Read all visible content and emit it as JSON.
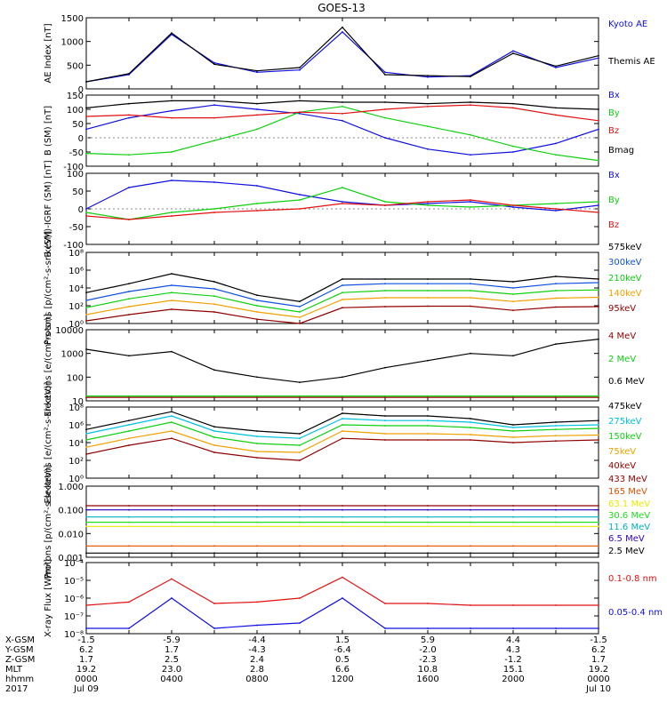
{
  "title": "GOES-13",
  "colors": {
    "black": "#000000",
    "blue": "#1010e0",
    "green": "#10d010",
    "red": "#e01010",
    "orange": "#f0a000",
    "cyan": "#00c0e0",
    "darkred": "#900000",
    "midblue": "#1050e0",
    "yellow": "#e8e800",
    "lime": "#20e020",
    "teal": "#00b0c0",
    "darkorange": "#e05000",
    "purple": "#3000c0"
  },
  "footer": {
    "row_labels": [
      "X-GSM",
      "Y-GSM",
      "Z-GSM",
      "MLT",
      "hhmm",
      "2017"
    ],
    "columns": [
      [
        "-1.5",
        "6.2",
        "1.7",
        "19.2",
        "0000",
        "Jul 09"
      ],
      [
        "-5.9",
        "1.7",
        "2.5",
        "23.0",
        "0400",
        ""
      ],
      [
        "-4.4",
        "-4.3",
        "2.4",
        "2.8",
        "0800",
        ""
      ],
      [
        "1.5",
        "-6.4",
        "0.5",
        "6.6",
        "1200",
        ""
      ],
      [
        "5.9",
        "-2.0",
        "-2.3",
        "10.8",
        "1600",
        ""
      ],
      [
        "4.4",
        "4.3",
        "-1.2",
        "15.1",
        "2000",
        ""
      ],
      [
        "-1.5",
        "6.2",
        "1.7",
        "19.2",
        "0000",
        "Jul 10"
      ]
    ]
  },
  "chart_data": [
    {
      "type": "line",
      "title": "GOES-13",
      "ylabel": "AE Index [nT]",
      "ylim": [
        0,
        1500
      ],
      "yticks": [
        "0",
        "500",
        "1000",
        "1500"
      ],
      "x": [
        "0000",
        "0200",
        "0400",
        "0600",
        "0800",
        "1000",
        "1200",
        "1400",
        "1600",
        "1800",
        "2000",
        "2200",
        "0000"
      ],
      "series": [
        {
          "name": "Kyoto AE",
          "color": "blue",
          "values": [
            150,
            300,
            1150,
            550,
            350,
            400,
            1200,
            350,
            250,
            280,
            800,
            450,
            650
          ]
        },
        {
          "name": "Themis AE",
          "color": "black",
          "values": [
            150,
            320,
            1180,
            520,
            380,
            450,
            1300,
            300,
            280,
            260,
            750,
            480,
            700
          ]
        }
      ]
    },
    {
      "type": "line",
      "ylabel": "B (SM) [nT]",
      "ylim": [
        -100,
        150
      ],
      "yticks": [
        "-100",
        "-50",
        "0",
        "50",
        "100",
        "150"
      ],
      "x": [
        "0000",
        "0200",
        "0400",
        "0600",
        "0800",
        "1000",
        "1200",
        "1400",
        "1600",
        "1800",
        "2000",
        "2200",
        "0000"
      ],
      "series": [
        {
          "name": "Bx",
          "color": "blue",
          "values": [
            30,
            70,
            95,
            115,
            100,
            85,
            60,
            0,
            -40,
            -60,
            -50,
            -20,
            30
          ]
        },
        {
          "name": "By",
          "color": "green",
          "values": [
            -55,
            -60,
            -50,
            -10,
            30,
            90,
            110,
            70,
            40,
            10,
            -30,
            -60,
            -80
          ]
        },
        {
          "name": "Bz",
          "color": "red",
          "values": [
            75,
            80,
            70,
            70,
            80,
            90,
            85,
            100,
            110,
            115,
            105,
            80,
            60
          ]
        },
        {
          "name": "Bmag",
          "color": "black",
          "values": [
            105,
            120,
            130,
            130,
            120,
            130,
            125,
            125,
            120,
            125,
            120,
            105,
            100
          ]
        }
      ]
    },
    {
      "type": "line",
      "ylabel": "B (SM)-IGRF (SM) [nT]",
      "ylim": [
        -100,
        100
      ],
      "yticks": [
        "-100",
        "-50",
        "0",
        "50",
        "100"
      ],
      "x": [
        "0000",
        "0200",
        "0400",
        "0600",
        "0800",
        "1000",
        "1200",
        "1400",
        "1600",
        "1800",
        "2000",
        "2200",
        "0000"
      ],
      "series": [
        {
          "name": "Bx",
          "color": "blue",
          "values": [
            0,
            60,
            80,
            75,
            65,
            40,
            20,
            10,
            15,
            20,
            5,
            -5,
            10
          ]
        },
        {
          "name": "By",
          "color": "green",
          "values": [
            -10,
            -30,
            -10,
            0,
            15,
            25,
            60,
            20,
            10,
            5,
            10,
            15,
            20
          ]
        },
        {
          "name": "Bz",
          "color": "red",
          "values": [
            -20,
            -30,
            -20,
            -10,
            -5,
            0,
            15,
            10,
            20,
            25,
            10,
            0,
            -10
          ]
        }
      ]
    },
    {
      "type": "line",
      "ylabel": "Protons [p/(cm²-s-sr-keV)]",
      "yscale": "log",
      "ylim": [
        1,
        100000000
      ],
      "yticks": [
        "10⁰",
        "10²",
        "10⁴",
        "10⁶",
        "10⁸"
      ],
      "x": [
        "0000",
        "0200",
        "0400",
        "0600",
        "0800",
        "1000",
        "1200",
        "1400",
        "1600",
        "1800",
        "2000",
        "2200",
        "0000"
      ],
      "series": [
        {
          "name": "575keV",
          "color": "black",
          "values": [
            3000,
            30000,
            400000,
            50000,
            1500,
            300,
            100000,
            100000,
            100000,
            100000,
            50000,
            200000,
            100000
          ]
        },
        {
          "name": "300keV",
          "color": "midblue",
          "values": [
            400,
            4000,
            20000,
            8000,
            400,
            80,
            20000,
            30000,
            30000,
            30000,
            10000,
            30000,
            40000
          ]
        },
        {
          "name": "210keV",
          "color": "green",
          "values": [
            60,
            600,
            3000,
            1200,
            100,
            20,
            3000,
            5000,
            5000,
            5000,
            2000,
            5000,
            6000
          ]
        },
        {
          "name": "140keV",
          "color": "orange",
          "values": [
            10,
            80,
            400,
            150,
            20,
            5,
            500,
            800,
            800,
            800,
            300,
            700,
            900
          ]
        },
        {
          "name": "95keV",
          "color": "darkred",
          "values": [
            2,
            10,
            40,
            20,
            3,
            1,
            60,
            80,
            90,
            90,
            30,
            70,
            80
          ]
        }
      ]
    },
    {
      "type": "line",
      "ylabel": "Electrons [e/(cm²-s-sr)]",
      "yscale": "log",
      "ylim": [
        10,
        10000
      ],
      "yticks": [
        "10",
        "100",
        "1000",
        "10000"
      ],
      "x": [
        "0000",
        "0200",
        "0400",
        "0600",
        "0800",
        "1000",
        "1200",
        "1400",
        "1600",
        "1800",
        "2000",
        "2200",
        "0000"
      ],
      "series": [
        {
          "name": "4 MeV",
          "color": "darkred",
          "values": [
            14,
            14,
            14,
            14,
            14,
            14,
            14,
            14,
            14,
            14,
            14,
            14,
            14
          ]
        },
        {
          "name": "2 MeV",
          "color": "green",
          "values": [
            16,
            16,
            16,
            16,
            16,
            16,
            16,
            16,
            16,
            16,
            16,
            16,
            16
          ]
        },
        {
          "name": "0.6 MeV",
          "color": "black",
          "values": [
            1500,
            800,
            1200,
            200,
            100,
            60,
            100,
            250,
            500,
            1000,
            800,
            2500,
            4000
          ]
        }
      ]
    },
    {
      "type": "line",
      "ylabel": "Electrons [e/(cm²-s-sr-keV)]",
      "yscale": "log",
      "ylim": [
        1,
        100000000
      ],
      "yticks": [
        "10⁰",
        "10²",
        "10⁴",
        "10⁶",
        "10⁸"
      ],
      "x": [
        "0000",
        "0200",
        "0400",
        "0600",
        "0800",
        "1000",
        "1200",
        "1400",
        "1600",
        "1800",
        "2000",
        "2200",
        "0000"
      ],
      "series": [
        {
          "name": "475keV",
          "color": "black",
          "values": [
            300000,
            3000000,
            30000000,
            600000,
            200000,
            100000,
            20000000,
            10000000,
            10000000,
            5000000,
            1000000,
            2000000,
            3000000
          ]
        },
        {
          "name": "275keV",
          "color": "cyan",
          "values": [
            100000,
            1000000,
            10000000,
            200000,
            50000,
            30000,
            5000000,
            3000000,
            3000000,
            2000000,
            500000,
            800000,
            1000000
          ]
        },
        {
          "name": "150keV",
          "color": "green",
          "values": [
            20000,
            200000,
            2000000,
            40000,
            8000,
            5000,
            1000000,
            800000,
            800000,
            500000,
            200000,
            300000,
            400000
          ]
        },
        {
          "name": "75keV",
          "color": "orange",
          "values": [
            3000,
            30000,
            200000,
            5000,
            1000,
            800,
            200000,
            100000,
            100000,
            80000,
            40000,
            60000,
            70000
          ]
        },
        {
          "name": "40keV",
          "color": "darkred",
          "values": [
            500,
            5000,
            30000,
            800,
            200,
            100,
            30000,
            20000,
            20000,
            20000,
            10000,
            15000,
            20000
          ]
        }
      ]
    },
    {
      "type": "line",
      "ylabel": "Protons [p/(cm²-s-sr-keV)]",
      "yscale": "log",
      "ylim": [
        0.001,
        1.0
      ],
      "yticks": [
        "0.001",
        "0.010",
        "0.100",
        "1.000"
      ],
      "x": [
        "0000",
        "0200",
        "0400",
        "0600",
        "0800",
        "1000",
        "1200",
        "1400",
        "1600",
        "1800",
        "2000",
        "2200",
        "0000"
      ],
      "series": [
        {
          "name": "433 MeV",
          "color": "darkred",
          "values": [
            0.15,
            0.15,
            0.15,
            0.15,
            0.15,
            0.15,
            0.15,
            0.15,
            0.15,
            0.15,
            0.15,
            0.15,
            0.15
          ]
        },
        {
          "name": "165 MeV",
          "color": "darkorange",
          "values": [
            0.003,
            0.003,
            0.003,
            0.003,
            0.003,
            0.003,
            0.003,
            0.003,
            0.003,
            0.003,
            0.003,
            0.003,
            0.003
          ]
        },
        {
          "name": "63.1 MeV",
          "color": "yellow",
          "values": [
            0.02,
            0.02,
            0.02,
            0.02,
            0.02,
            0.02,
            0.02,
            0.02,
            0.02,
            0.02,
            0.02,
            0.02,
            0.02
          ]
        },
        {
          "name": "30.6 MeV",
          "color": "lime",
          "values": [
            0.03,
            0.03,
            0.03,
            0.03,
            0.03,
            0.03,
            0.03,
            0.03,
            0.03,
            0.03,
            0.03,
            0.03,
            0.03
          ]
        },
        {
          "name": "11.6 MeV",
          "color": "teal",
          "values": [
            0.05,
            0.05,
            0.05,
            0.05,
            0.05,
            0.05,
            0.05,
            0.05,
            0.05,
            0.05,
            0.05,
            0.05,
            0.05
          ]
        },
        {
          "name": "6.5 MeV",
          "color": "purple",
          "values": [
            0.1,
            0.1,
            0.1,
            0.1,
            0.1,
            0.1,
            0.1,
            0.1,
            0.1,
            0.1,
            0.1,
            0.1,
            0.1
          ]
        },
        {
          "name": "2.5 MeV",
          "color": "black",
          "values": [
            0.0015,
            0.0015,
            0.0015,
            0.0015,
            0.0015,
            0.0015,
            0.0015,
            0.0015,
            0.0015,
            0.0015,
            0.0015,
            0.0015,
            0.0015
          ]
        }
      ]
    },
    {
      "type": "line",
      "ylabel": "X-ray Flux [W/m²]",
      "yscale": "log",
      "ylim": [
        1e-08,
        0.0001
      ],
      "yticks": [
        "10⁻⁸",
        "10⁻⁷",
        "10⁻⁶",
        "10⁻⁵",
        "10⁻⁴"
      ],
      "x": [
        "0000",
        "0200",
        "0400",
        "0600",
        "0800",
        "1000",
        "1200",
        "1400",
        "1600",
        "1800",
        "2000",
        "2200",
        "0000"
      ],
      "series": [
        {
          "name": "0.1-0.8 nm",
          "color": "red",
          "values": [
            4e-07,
            6e-07,
            1.2e-05,
            5e-07,
            6e-07,
            1e-06,
            1.5e-05,
            5e-07,
            5e-07,
            4e-07,
            4e-07,
            4e-07,
            4e-07
          ]
        },
        {
          "name": "0.05-0.4 nm",
          "color": "blue",
          "values": [
            2e-08,
            2e-08,
            1e-06,
            2e-08,
            3e-08,
            4e-08,
            1e-06,
            2e-08,
            2e-08,
            2e-08,
            2e-08,
            2e-08,
            2e-08
          ]
        }
      ]
    }
  ]
}
